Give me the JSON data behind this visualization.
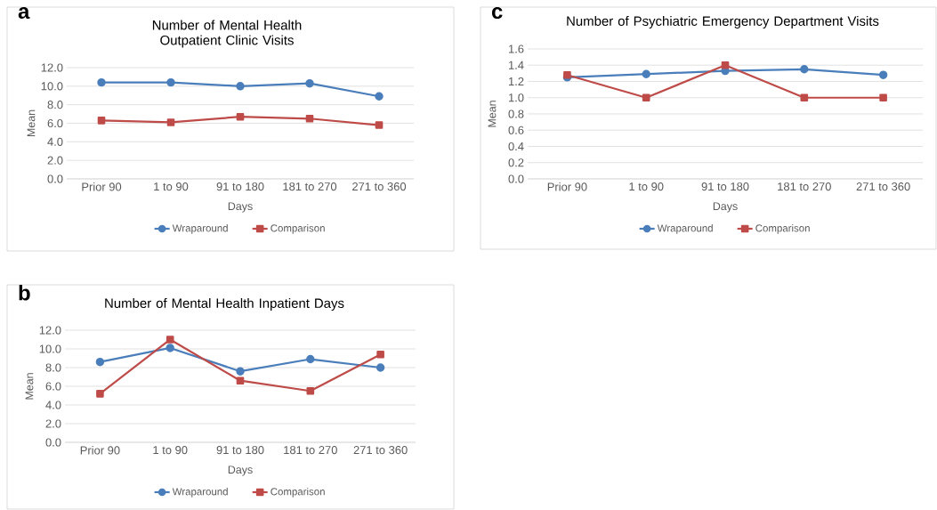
{
  "chart_data": [
    {
      "type": "line",
      "title": "Number of Mental Health Outpatient Clinic Visits",
      "xlabel": "Days",
      "ylabel": "Mean",
      "annotations": [
        "a"
      ],
      "categories": [
        "Prior 90",
        "1 to 90",
        "91 to 180",
        "181 to 270",
        "271 to 360"
      ],
      "series": [
        {
          "name": "Wraparound",
          "color": "#4a7ebb",
          "marker": "circle",
          "values": [
            10.4,
            10.4,
            10.0,
            10.3,
            8.9
          ]
        },
        {
          "name": "Comparison",
          "color": "#be4b48",
          "marker": "square",
          "values": [
            6.3,
            6.1,
            6.7,
            6.5,
            5.8
          ]
        }
      ],
      "ylim": [
        0,
        12
      ],
      "yticks": [
        {
          "value": 0,
          "label": "0.0"
        },
        {
          "value": 2,
          "label": "2.0"
        },
        {
          "value": 4,
          "label": "4.0"
        },
        {
          "value": 6,
          "label": "6.0"
        },
        {
          "value": 8,
          "label": "8.0"
        },
        {
          "value": 10,
          "label": "10.0"
        },
        {
          "value": 12,
          "label": "12.0"
        }
      ],
      "grid": "y",
      "legend": "bottom"
    },
    {
      "type": "line",
      "title": "Number of Mental Health Inpatient Days",
      "xlabel": "Days",
      "ylabel": "Mean",
      "annotations": [
        "b"
      ],
      "categories": [
        "Prior 90",
        "1 to 90",
        "91 to 180",
        "181 to 270",
        "271 to 360"
      ],
      "series": [
        {
          "name": "Wraparound",
          "color": "#4a7ebb",
          "marker": "circle",
          "values": [
            8.6,
            10.1,
            7.6,
            8.9,
            8.0
          ]
        },
        {
          "name": "Comparison",
          "color": "#be4b48",
          "marker": "square",
          "values": [
            5.2,
            11.0,
            6.6,
            5.5,
            9.4
          ]
        }
      ],
      "ylim": [
        0,
        12
      ],
      "yticks": [
        {
          "value": 0,
          "label": "0.0"
        },
        {
          "value": 2,
          "label": "2.0"
        },
        {
          "value": 4,
          "label": "4.0"
        },
        {
          "value": 6,
          "label": "6.0"
        },
        {
          "value": 8,
          "label": "8.0"
        },
        {
          "value": 10,
          "label": "10.0"
        },
        {
          "value": 12,
          "label": "12.0"
        }
      ],
      "grid": "y",
      "legend": "bottom"
    },
    {
      "type": "line",
      "title": "Number of Psychiatric Emergency Department Visits",
      "xlabel": "Days",
      "ylabel": "Mean",
      "annotations": [
        "c"
      ],
      "categories": [
        "Prior 90",
        "1 to 90",
        "91 to 180",
        "181 to 270",
        "271 to 360"
      ],
      "series": [
        {
          "name": "Wraparound",
          "color": "#4a7ebb",
          "marker": "circle",
          "values": [
            1.25,
            1.29,
            1.33,
            1.35,
            1.28
          ]
        },
        {
          "name": "Comparison",
          "color": "#be4b48",
          "marker": "square",
          "values": [
            1.28,
            1.0,
            1.4,
            1.0,
            1.0
          ]
        }
      ],
      "ylim": [
        0,
        1.6
      ],
      "yticks": [
        {
          "value": 0,
          "label": "0.0"
        },
        {
          "value": 0.2,
          "label": "0.2"
        },
        {
          "value": 0.4,
          "label": "0.4"
        },
        {
          "value": 0.6,
          "label": "0.6"
        },
        {
          "value": 0.8,
          "label": "0.8"
        },
        {
          "value": 1.0,
          "label": "1.0"
        },
        {
          "value": 1.2,
          "label": "1.2"
        },
        {
          "value": 1.4,
          "label": "1.4"
        },
        {
          "value": 1.6,
          "label": "1.6"
        }
      ],
      "grid": "y",
      "legend": "bottom"
    }
  ]
}
